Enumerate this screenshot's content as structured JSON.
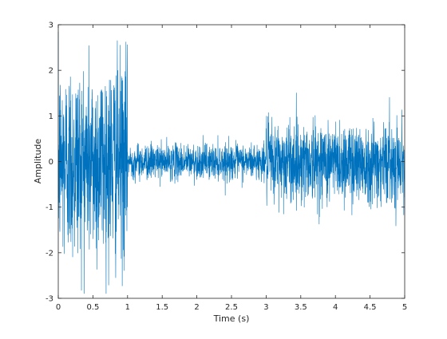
{
  "chart_data": {
    "type": "line",
    "title": "",
    "xlabel": "Time (s)",
    "ylabel": "Amplitude",
    "xlim": [
      0,
      5
    ],
    "ylim": [
      -3,
      3
    ],
    "xticks": [
      0,
      0.5,
      1,
      1.5,
      2,
      2.5,
      3,
      3.5,
      4,
      4.5,
      5
    ],
    "xtick_labels": [
      "0",
      "0.5",
      "1",
      "1.5",
      "2",
      "2.5",
      "3",
      "3.5",
      "4",
      "4.5",
      "5"
    ],
    "yticks": [
      -3,
      -2,
      -1,
      0,
      1,
      2,
      3
    ],
    "ytick_labels": [
      "-3",
      "-2",
      "-1",
      "0",
      "1",
      "2",
      "3"
    ],
    "grid": false,
    "legend": "none",
    "series_color": "#0072BD",
    "series": [
      {
        "segments": [
          {
            "x_start": 0,
            "x_end": 1,
            "typical_envelope": 2.0,
            "peak_max": 2.85,
            "peak_min": -2.9
          },
          {
            "x_start": 1,
            "x_end": 3,
            "typical_envelope": 0.35,
            "peak_max": 1.0,
            "peak_min": -0.8
          },
          {
            "x_start": 3,
            "x_end": 5,
            "typical_envelope": 0.8,
            "peak_max": 1.7,
            "peak_min": -1.75
          }
        ]
      }
    ]
  }
}
